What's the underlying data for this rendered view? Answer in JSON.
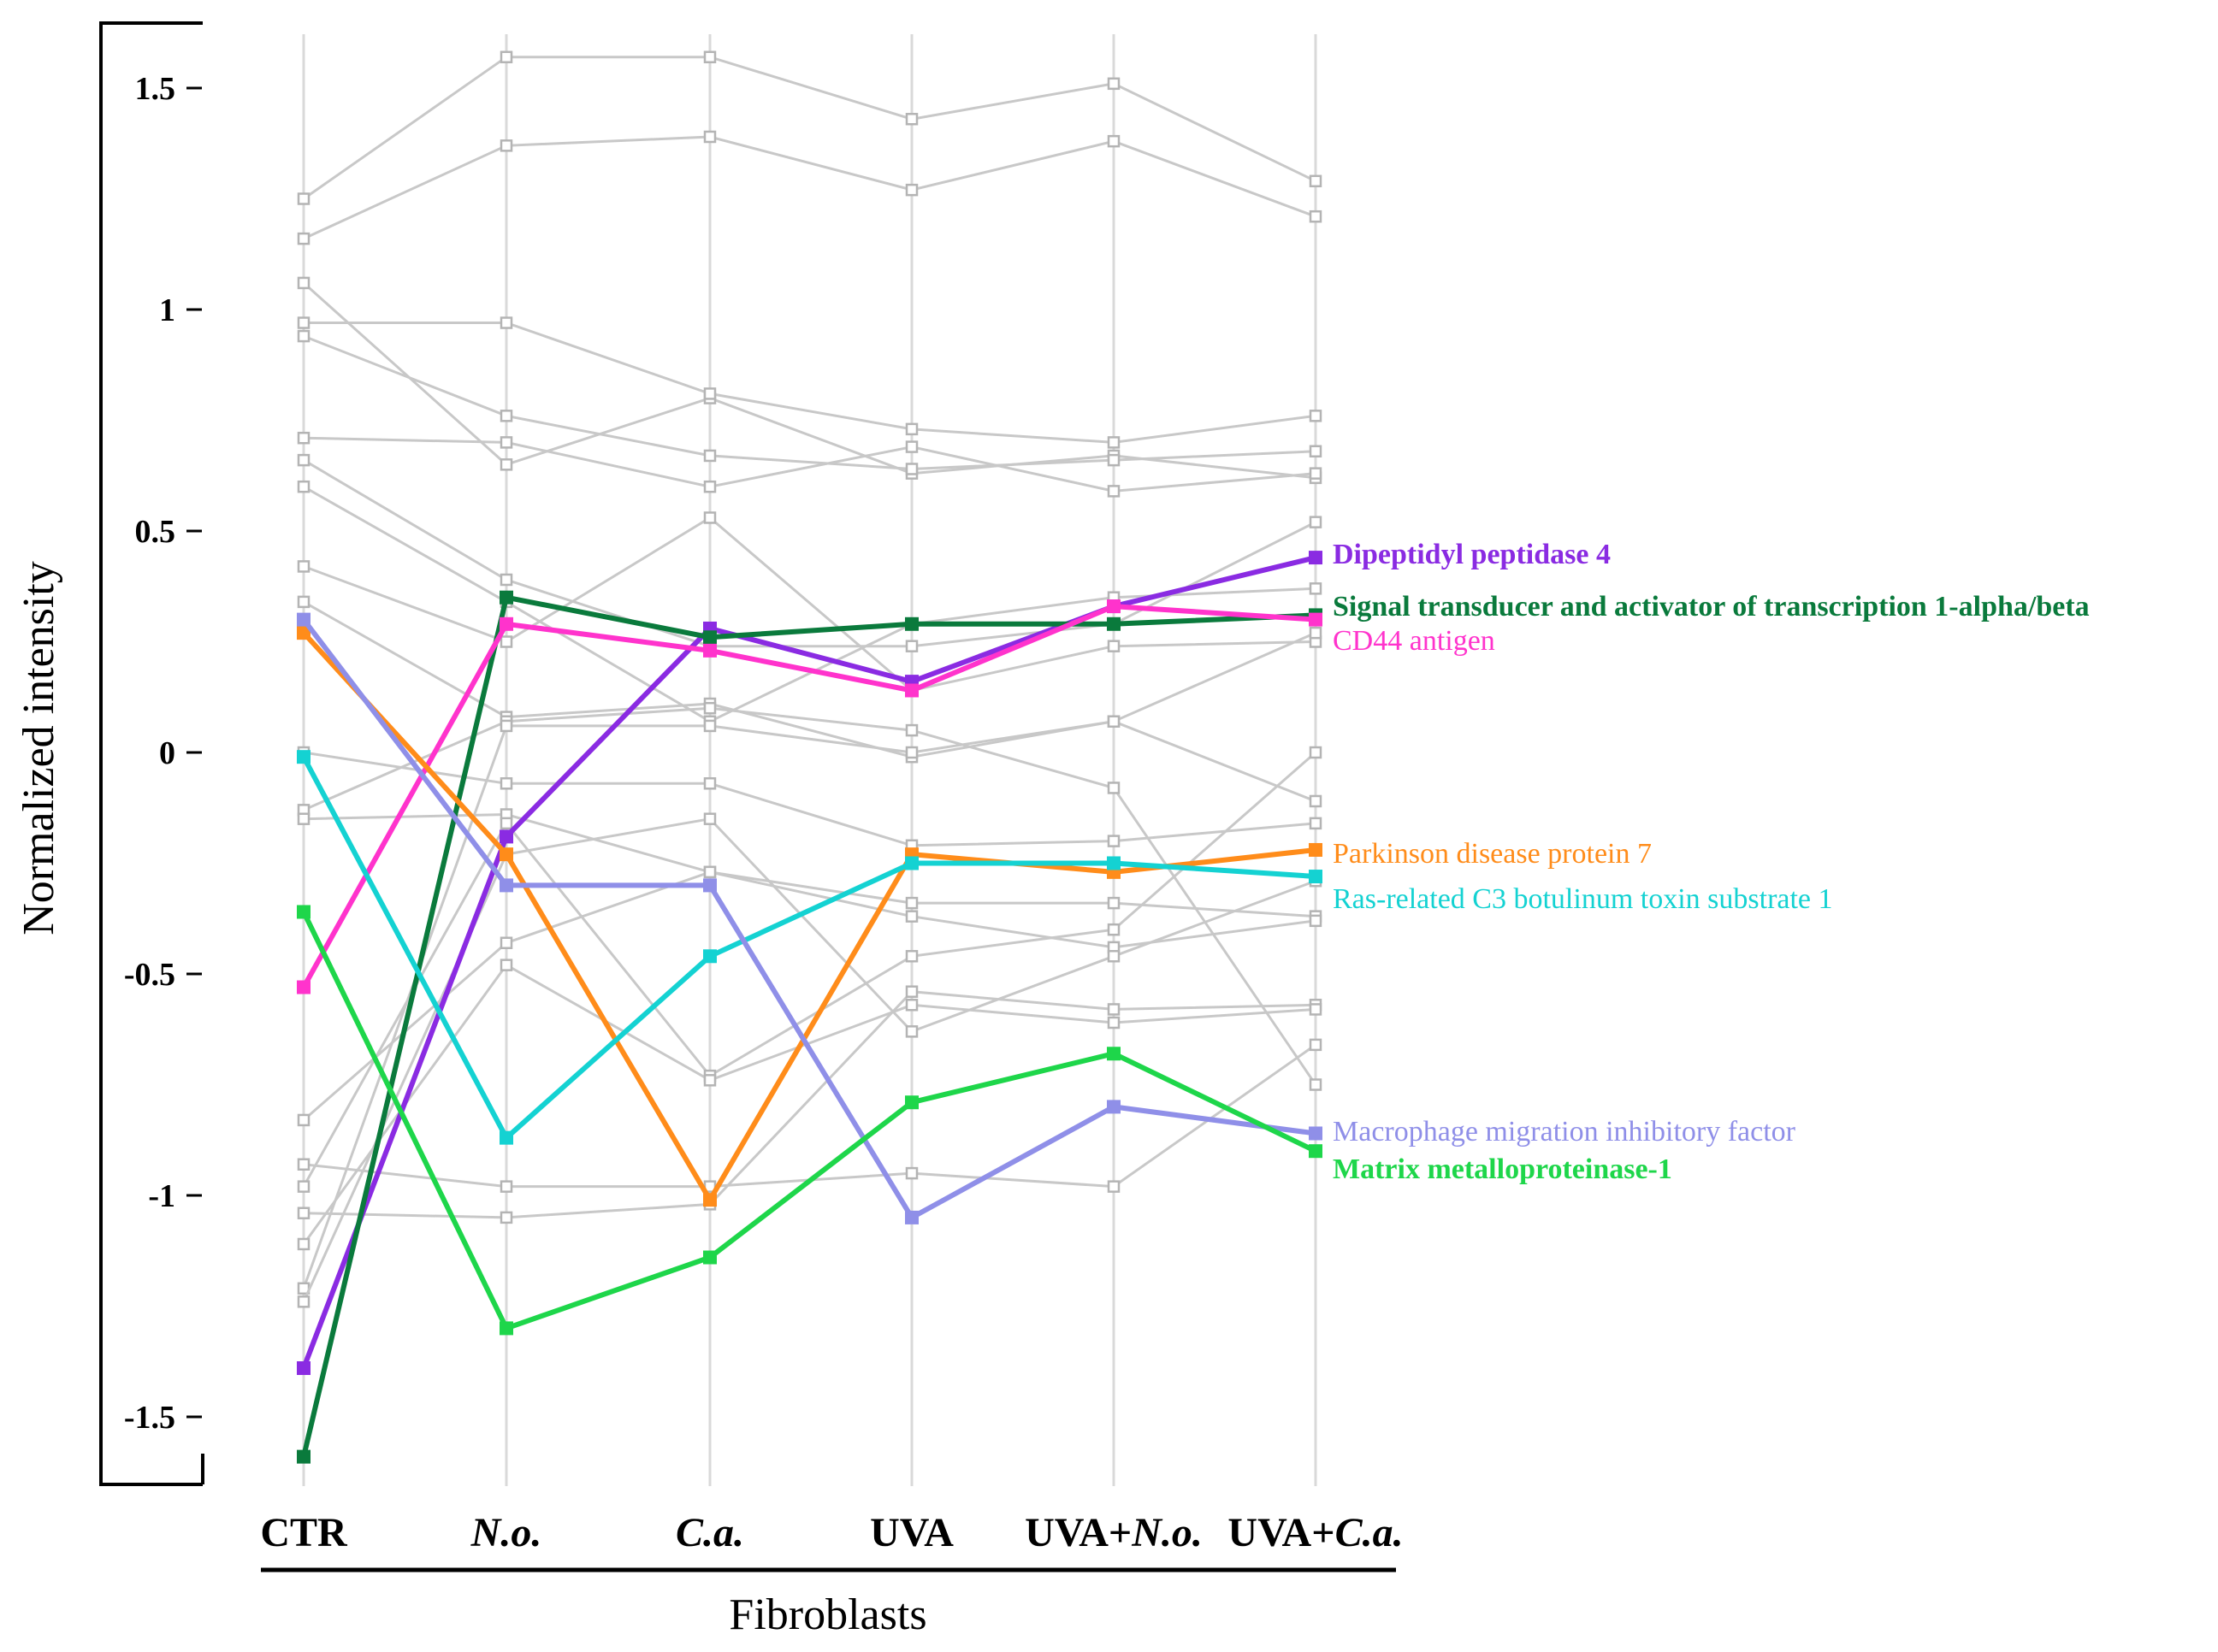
{
  "chart_data": {
    "type": "line",
    "title": "",
    "xlabel": "Fibroblasts",
    "ylabel": "Normalized intensity",
    "ylim": [
      -1.65,
      1.65
    ],
    "yticks": [
      {
        "value": 1.5,
        "label": "1.5"
      },
      {
        "value": 1,
        "label": "1"
      },
      {
        "value": 0.5,
        "label": "0.5"
      },
      {
        "value": 0,
        "label": "0"
      },
      {
        "value": -0.5,
        "label": "-0.5"
      },
      {
        "value": -1,
        "label": "-1"
      },
      {
        "value": -1.5,
        "label": "-1.5"
      }
    ],
    "categories": [
      "CTR",
      "N.o.",
      "C.a.",
      "UVA",
      "UVA+N.o.",
      "UVA+C.a."
    ],
    "category_labels": [
      [
        {
          "t": "CTR",
          "i": false
        }
      ],
      [
        {
          "t": "N.o.",
          "i": true
        }
      ],
      [
        {
          "t": "C.a.",
          "i": true
        }
      ],
      [
        {
          "t": "UVA",
          "i": false
        }
      ],
      [
        {
          "t": "UVA+",
          "i": false
        },
        {
          "t": "N.o.",
          "i": true
        }
      ],
      [
        {
          "t": "UVA+",
          "i": false
        },
        {
          "t": "C.a.",
          "i": true
        }
      ]
    ],
    "background_color": "#c8c8c8",
    "background_series": [
      [
        1.25,
        1.57,
        1.57,
        1.43,
        1.51,
        1.29
      ],
      [
        1.16,
        1.37,
        1.39,
        1.27,
        1.38,
        1.21
      ],
      [
        1.06,
        0.65,
        0.8,
        0.63,
        0.67,
        0.62
      ],
      [
        0.97,
        0.97,
        0.81,
        0.73,
        0.7,
        0.76
      ],
      [
        0.94,
        0.76,
        0.67,
        0.64,
        0.66,
        0.68
      ],
      [
        0.71,
        0.7,
        0.6,
        0.69,
        0.59,
        0.63
      ],
      [
        0.66,
        0.39,
        0.24,
        0.24,
        0.29,
        0.52
      ],
      [
        0.6,
        0.34,
        0.07,
        0.29,
        0.35,
        0.37
      ],
      [
        0.42,
        0.25,
        0.53,
        0.14,
        0.24,
        0.25
      ],
      [
        0.34,
        0.08,
        0.11,
        -0.01,
        0.07,
        -0.11
      ],
      [
        0.0,
        -0.07,
        -0.07,
        -0.21,
        -0.2,
        -0.16
      ],
      [
        -0.13,
        0.07,
        0.1,
        0.05,
        -0.08,
        -0.75
      ],
      [
        -0.15,
        -0.14,
        -0.27,
        -0.34,
        -0.34,
        -0.37
      ],
      [
        -0.83,
        -0.43,
        -0.27,
        -0.37,
        -0.44,
        -0.38
      ],
      [
        -0.93,
        -0.98,
        -0.98,
        -0.95,
        -0.98,
        -0.66
      ],
      [
        -0.98,
        -0.16,
        -0.73,
        -0.46,
        -0.4,
        0.0
      ],
      [
        -1.04,
        -1.05,
        -1.02,
        -0.54,
        -0.58,
        -0.57
      ],
      [
        -1.11,
        -0.48,
        -0.74,
        -0.57,
        -0.61,
        -0.58
      ],
      [
        -1.21,
        0.06,
        0.06,
        0.0,
        0.07,
        0.27
      ],
      [
        -1.24,
        -0.23,
        -0.15,
        -0.63,
        -0.46,
        -0.29
      ]
    ],
    "series": [
      {
        "name": "Dipeptidyl peptidase 4",
        "color": "#8a2be2",
        "bold": true,
        "values": [
          -1.39,
          -0.19,
          0.28,
          0.16,
          0.33,
          0.44
        ]
      },
      {
        "name": "Signal transducer and activator of transcription 1-alpha/beta",
        "color": "#0a7a3c",
        "bold": true,
        "values": [
          -1.59,
          0.35,
          0.26,
          0.29,
          0.29,
          0.31
        ]
      },
      {
        "name": "CD44 antigen",
        "color": "#ff33cc",
        "bold": false,
        "values": [
          -0.53,
          0.29,
          0.23,
          0.14,
          0.33,
          0.3
        ]
      },
      {
        "name": "Parkinson disease protein 7",
        "color": "#ff8c1a",
        "bold": false,
        "values": [
          0.27,
          -0.23,
          -1.01,
          -0.23,
          -0.27,
          -0.22
        ]
      },
      {
        "name": "Ras-related C3 botulinum toxin substrate 1",
        "color": "#14d2d2",
        "bold": false,
        "values": [
          -0.01,
          -0.87,
          -0.46,
          -0.25,
          -0.25,
          -0.28
        ]
      },
      {
        "name": "Macrophage migration inhibitory factor",
        "color": "#8f8fe8",
        "bold": false,
        "values": [
          0.3,
          -0.3,
          -0.3,
          -1.05,
          -0.8,
          -0.86
        ]
      },
      {
        "name": "Matrix metalloproteinase-1",
        "color": "#1ed64a",
        "bold": true,
        "values": [
          -0.36,
          -1.3,
          -1.14,
          -0.79,
          -0.68,
          -0.9
        ]
      }
    ]
  }
}
